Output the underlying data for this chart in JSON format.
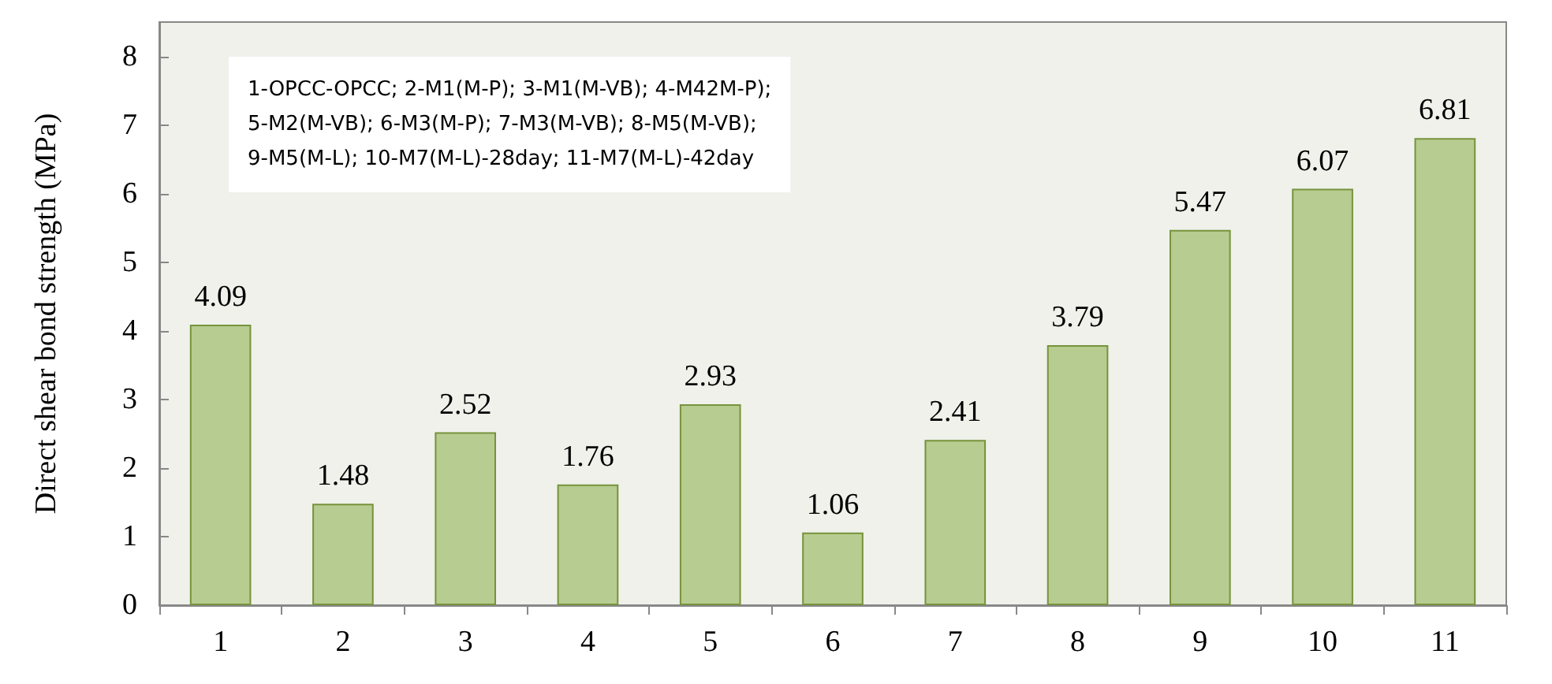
{
  "chart_data": {
    "type": "bar",
    "ylabel": "Direct shear bond strength (MPa)",
    "categories": [
      "1",
      "2",
      "3",
      "4",
      "5",
      "6",
      "7",
      "8",
      "9",
      "10",
      "11"
    ],
    "values": [
      4.09,
      1.48,
      2.52,
      1.76,
      2.93,
      1.06,
      2.41,
      3.79,
      5.47,
      6.07,
      6.81
    ],
    "color": "#b7cc90",
    "data_labels": true,
    "ylim": [
      0,
      8.5
    ],
    "yticks": [
      0,
      1,
      2,
      3,
      4,
      5,
      6,
      7,
      8
    ],
    "grid": false,
    "annotations": [
      "1-OPCC-OPCC; 2-M1(M-P); 3-M1(M-VB); 4-M42M-P);\n5-M2(M-VB); 6-M3(M-P); 7-M3(M-VB); 8-M5(M-VB);\n9-M5(M-L); 10-M7(M-L)-28day; 11-M7(M-L)-42day"
    ]
  }
}
